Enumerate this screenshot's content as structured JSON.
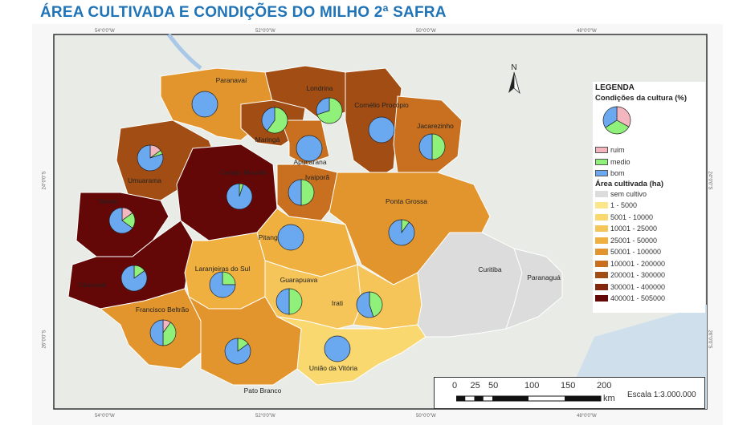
{
  "title": "ÁREA CULTIVADA E CONDIÇÕES DO MILHO 2ª SAFRA",
  "coordinates": {
    "top": [
      "54°0'0\"W",
      "52°0'0\"W",
      "50°0'0\"W",
      "48°0'0\"W"
    ],
    "side": [
      "24°0'0\"S",
      "26°0'0\"S"
    ]
  },
  "north_arrow": "N",
  "legend": {
    "title": "LEGENDA",
    "conditions_title": "Condições da cultura (%)",
    "conditions": [
      {
        "label": "ruim",
        "color": "#f4b6be"
      },
      {
        "label": "medio",
        "color": "#8ff07a"
      },
      {
        "label": "bom",
        "color": "#6aa8f0"
      }
    ],
    "area_title": "Área cultivada (ha)",
    "classes": [
      {
        "label": "sem cultivo",
        "color": "#dcdcdc"
      },
      {
        "label": "1 - 5000",
        "color": "#fbe68a"
      },
      {
        "label": "5001 - 10000",
        "color": "#f9d870"
      },
      {
        "label": "10001 - 25000",
        "color": "#f6c559"
      },
      {
        "label": "25001 - 50000",
        "color": "#f0b040"
      },
      {
        "label": "50001 - 100000",
        "color": "#e3952d"
      },
      {
        "label": "100001 - 200000",
        "color": "#c8701f"
      },
      {
        "label": "200001 - 300000",
        "color": "#a24d13"
      },
      {
        "label": "300001 - 400000",
        "color": "#82260c"
      },
      {
        "label": "400001 - 505000",
        "color": "#640707"
      }
    ]
  },
  "regions": [
    {
      "name": "Paranavaí",
      "class": "50001 - 100000",
      "conditions": {
        "ruim": 0,
        "medio": 0,
        "bom": 100
      }
    },
    {
      "name": "Londrina",
      "class": "200001 - 300000",
      "conditions": {
        "ruim": 0,
        "medio": 70,
        "bom": 30
      }
    },
    {
      "name": "Cornélio Procópio",
      "class": "200001 - 300000",
      "conditions": {
        "ruim": 0,
        "medio": 0,
        "bom": 100
      }
    },
    {
      "name": "Maringá",
      "class": "200001 - 300000",
      "conditions": {
        "ruim": 0,
        "medio": 60,
        "bom": 40
      }
    },
    {
      "name": "Jacarezinho",
      "class": "100001 - 200000",
      "conditions": {
        "ruim": 0,
        "medio": 50,
        "bom": 50
      }
    },
    {
      "name": "Apucarana",
      "class": "100001 - 200000",
      "conditions": {
        "ruim": 0,
        "medio": 0,
        "bom": 100
      }
    },
    {
      "name": "Umuarama",
      "class": "200001 - 300000",
      "conditions": {
        "ruim": 15,
        "medio": 5,
        "bom": 80
      }
    },
    {
      "name": "Campo Mourão",
      "class": "400001 - 505000",
      "conditions": {
        "ruim": 0,
        "medio": 5,
        "bom": 95
      }
    },
    {
      "name": "Ivaiporã",
      "class": "100001 - 200000",
      "conditions": {
        "ruim": 0,
        "medio": 50,
        "bom": 50
      }
    },
    {
      "name": "Toledo",
      "class": "400001 - 505000",
      "conditions": {
        "ruim": 15,
        "medio": 20,
        "bom": 65
      }
    },
    {
      "name": "Ponta Grossa",
      "class": "50001 - 100000",
      "conditions": {
        "ruim": 0,
        "medio": 10,
        "bom": 90
      }
    },
    {
      "name": "Pitanga",
      "class": "25001 - 50000",
      "conditions": {
        "ruim": 0,
        "medio": 0,
        "bom": 100
      }
    },
    {
      "name": "Cascavel",
      "class": "400001 - 505000",
      "conditions": {
        "ruim": 0,
        "medio": 15,
        "bom": 85
      }
    },
    {
      "name": "Laranjeiras do Sul",
      "class": "25001 - 50000",
      "conditions": {
        "ruim": 0,
        "medio": 25,
        "bom": 75
      }
    },
    {
      "name": "Guarapuava",
      "class": "10001 - 25000",
      "conditions": {
        "ruim": 0,
        "medio": 50,
        "bom": 50
      }
    },
    {
      "name": "Irati",
      "class": "10001 - 25000",
      "conditions": {
        "ruim": 0,
        "medio": 45,
        "bom": 55
      }
    },
    {
      "name": "União da Vitória",
      "class": "5001 - 10000",
      "conditions": {
        "ruim": 0,
        "medio": 0,
        "bom": 100
      }
    },
    {
      "name": "Francisco Beltrão",
      "class": "50001 - 100000",
      "conditions": {
        "ruim": 10,
        "medio": 40,
        "bom": 50
      }
    },
    {
      "name": "Pato Branco",
      "class": "50001 - 100000",
      "conditions": {
        "ruim": 0,
        "medio": 15,
        "bom": 85
      }
    },
    {
      "name": "Curitiba",
      "class": "sem cultivo",
      "conditions": null
    },
    {
      "name": "Paranaguá",
      "class": "sem cultivo",
      "conditions": null
    }
  ],
  "legend_pie": {
    "ruim": 33,
    "medio": 33,
    "bom": 34
  },
  "scale": {
    "ticks": [
      "0",
      "25",
      "50",
      "100",
      "150",
      "200"
    ],
    "unit": "km",
    "text": "Escala 1:3.000.000"
  }
}
